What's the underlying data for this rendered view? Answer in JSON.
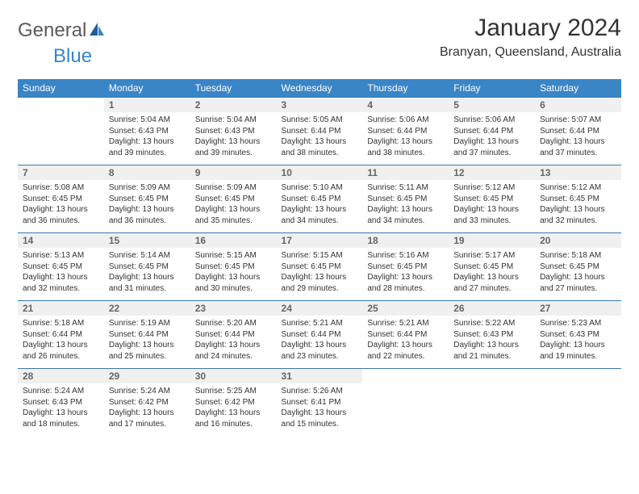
{
  "brand": {
    "name_part1": "General",
    "name_part2": "Blue"
  },
  "title": "January 2024",
  "location": "Branyan, Queensland, Australia",
  "colors": {
    "header_bg": "#3a85c6",
    "header_text": "#ffffff",
    "daynum_bg": "#f0f0f0",
    "daynum_text": "#666666",
    "body_text": "#333333",
    "rule": "#3a7aae",
    "page_bg": "#ffffff"
  },
  "typography": {
    "title_fontsize": 30,
    "location_fontsize": 16,
    "dayheader_fontsize": 12,
    "daynum_fontsize": 12,
    "content_fontsize": 10
  },
  "day_headers": [
    "Sunday",
    "Monday",
    "Tuesday",
    "Wednesday",
    "Thursday",
    "Friday",
    "Saturday"
  ],
  "weeks": [
    [
      {
        "num": "",
        "sunrise": "",
        "sunset": "",
        "daylight": ""
      },
      {
        "num": "1",
        "sunrise": "Sunrise: 5:04 AM",
        "sunset": "Sunset: 6:43 PM",
        "daylight": "Daylight: 13 hours and 39 minutes."
      },
      {
        "num": "2",
        "sunrise": "Sunrise: 5:04 AM",
        "sunset": "Sunset: 6:43 PM",
        "daylight": "Daylight: 13 hours and 39 minutes."
      },
      {
        "num": "3",
        "sunrise": "Sunrise: 5:05 AM",
        "sunset": "Sunset: 6:44 PM",
        "daylight": "Daylight: 13 hours and 38 minutes."
      },
      {
        "num": "4",
        "sunrise": "Sunrise: 5:06 AM",
        "sunset": "Sunset: 6:44 PM",
        "daylight": "Daylight: 13 hours and 38 minutes."
      },
      {
        "num": "5",
        "sunrise": "Sunrise: 5:06 AM",
        "sunset": "Sunset: 6:44 PM",
        "daylight": "Daylight: 13 hours and 37 minutes."
      },
      {
        "num": "6",
        "sunrise": "Sunrise: 5:07 AM",
        "sunset": "Sunset: 6:44 PM",
        "daylight": "Daylight: 13 hours and 37 minutes."
      }
    ],
    [
      {
        "num": "7",
        "sunrise": "Sunrise: 5:08 AM",
        "sunset": "Sunset: 6:45 PM",
        "daylight": "Daylight: 13 hours and 36 minutes."
      },
      {
        "num": "8",
        "sunrise": "Sunrise: 5:09 AM",
        "sunset": "Sunset: 6:45 PM",
        "daylight": "Daylight: 13 hours and 36 minutes."
      },
      {
        "num": "9",
        "sunrise": "Sunrise: 5:09 AM",
        "sunset": "Sunset: 6:45 PM",
        "daylight": "Daylight: 13 hours and 35 minutes."
      },
      {
        "num": "10",
        "sunrise": "Sunrise: 5:10 AM",
        "sunset": "Sunset: 6:45 PM",
        "daylight": "Daylight: 13 hours and 34 minutes."
      },
      {
        "num": "11",
        "sunrise": "Sunrise: 5:11 AM",
        "sunset": "Sunset: 6:45 PM",
        "daylight": "Daylight: 13 hours and 34 minutes."
      },
      {
        "num": "12",
        "sunrise": "Sunrise: 5:12 AM",
        "sunset": "Sunset: 6:45 PM",
        "daylight": "Daylight: 13 hours and 33 minutes."
      },
      {
        "num": "13",
        "sunrise": "Sunrise: 5:12 AM",
        "sunset": "Sunset: 6:45 PM",
        "daylight": "Daylight: 13 hours and 32 minutes."
      }
    ],
    [
      {
        "num": "14",
        "sunrise": "Sunrise: 5:13 AM",
        "sunset": "Sunset: 6:45 PM",
        "daylight": "Daylight: 13 hours and 32 minutes."
      },
      {
        "num": "15",
        "sunrise": "Sunrise: 5:14 AM",
        "sunset": "Sunset: 6:45 PM",
        "daylight": "Daylight: 13 hours and 31 minutes."
      },
      {
        "num": "16",
        "sunrise": "Sunrise: 5:15 AM",
        "sunset": "Sunset: 6:45 PM",
        "daylight": "Daylight: 13 hours and 30 minutes."
      },
      {
        "num": "17",
        "sunrise": "Sunrise: 5:15 AM",
        "sunset": "Sunset: 6:45 PM",
        "daylight": "Daylight: 13 hours and 29 minutes."
      },
      {
        "num": "18",
        "sunrise": "Sunrise: 5:16 AM",
        "sunset": "Sunset: 6:45 PM",
        "daylight": "Daylight: 13 hours and 28 minutes."
      },
      {
        "num": "19",
        "sunrise": "Sunrise: 5:17 AM",
        "sunset": "Sunset: 6:45 PM",
        "daylight": "Daylight: 13 hours and 27 minutes."
      },
      {
        "num": "20",
        "sunrise": "Sunrise: 5:18 AM",
        "sunset": "Sunset: 6:45 PM",
        "daylight": "Daylight: 13 hours and 27 minutes."
      }
    ],
    [
      {
        "num": "21",
        "sunrise": "Sunrise: 5:18 AM",
        "sunset": "Sunset: 6:44 PM",
        "daylight": "Daylight: 13 hours and 26 minutes."
      },
      {
        "num": "22",
        "sunrise": "Sunrise: 5:19 AM",
        "sunset": "Sunset: 6:44 PM",
        "daylight": "Daylight: 13 hours and 25 minutes."
      },
      {
        "num": "23",
        "sunrise": "Sunrise: 5:20 AM",
        "sunset": "Sunset: 6:44 PM",
        "daylight": "Daylight: 13 hours and 24 minutes."
      },
      {
        "num": "24",
        "sunrise": "Sunrise: 5:21 AM",
        "sunset": "Sunset: 6:44 PM",
        "daylight": "Daylight: 13 hours and 23 minutes."
      },
      {
        "num": "25",
        "sunrise": "Sunrise: 5:21 AM",
        "sunset": "Sunset: 6:44 PM",
        "daylight": "Daylight: 13 hours and 22 minutes."
      },
      {
        "num": "26",
        "sunrise": "Sunrise: 5:22 AM",
        "sunset": "Sunset: 6:43 PM",
        "daylight": "Daylight: 13 hours and 21 minutes."
      },
      {
        "num": "27",
        "sunrise": "Sunrise: 5:23 AM",
        "sunset": "Sunset: 6:43 PM",
        "daylight": "Daylight: 13 hours and 19 minutes."
      }
    ],
    [
      {
        "num": "28",
        "sunrise": "Sunrise: 5:24 AM",
        "sunset": "Sunset: 6:43 PM",
        "daylight": "Daylight: 13 hours and 18 minutes."
      },
      {
        "num": "29",
        "sunrise": "Sunrise: 5:24 AM",
        "sunset": "Sunset: 6:42 PM",
        "daylight": "Daylight: 13 hours and 17 minutes."
      },
      {
        "num": "30",
        "sunrise": "Sunrise: 5:25 AM",
        "sunset": "Sunset: 6:42 PM",
        "daylight": "Daylight: 13 hours and 16 minutes."
      },
      {
        "num": "31",
        "sunrise": "Sunrise: 5:26 AM",
        "sunset": "Sunset: 6:41 PM",
        "daylight": "Daylight: 13 hours and 15 minutes."
      },
      {
        "num": "",
        "sunrise": "",
        "sunset": "",
        "daylight": ""
      },
      {
        "num": "",
        "sunrise": "",
        "sunset": "",
        "daylight": ""
      },
      {
        "num": "",
        "sunrise": "",
        "sunset": "",
        "daylight": ""
      }
    ]
  ]
}
